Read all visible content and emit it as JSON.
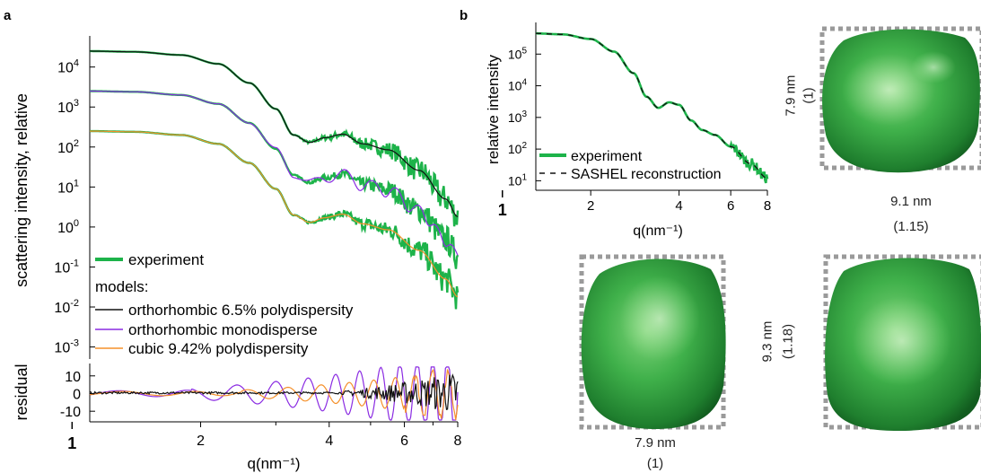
{
  "panel_labels": {
    "a": "a",
    "b": "b"
  },
  "chart_data": [
    {
      "id": "panel-a-main",
      "type": "line",
      "xlabel": "q(nm⁻¹)",
      "ylabel": "scattering intensity, relative",
      "x_scale": "log",
      "y_scale": "log",
      "xlim": [
        1.1,
        8
      ],
      "ylim": [
        0.0005,
        60000
      ],
      "x_ticks": [
        {
          "v": 2,
          "t": "2"
        },
        {
          "v": 4,
          "t": "4"
        },
        {
          "v": 6,
          "t": "6"
        },
        {
          "v": 8,
          "t": "8"
        }
      ],
      "x_tick_major": {
        "v": 1,
        "t": "1"
      },
      "y_ticks": [
        {
          "v": 10000,
          "base": "10",
          "exp": "4"
        },
        {
          "v": 1000,
          "base": "10",
          "exp": "3"
        },
        {
          "v": 100,
          "base": "10",
          "exp": "2"
        },
        {
          "v": 10,
          "base": "10",
          "exp": "1"
        },
        {
          "v": 1,
          "base": "10",
          "exp": "0"
        },
        {
          "v": 0.1,
          "base": "10",
          "exp": "-1"
        },
        {
          "v": 0.01,
          "base": "10",
          "exp": "-2"
        },
        {
          "v": 0.001,
          "base": "10",
          "exp": "-3"
        }
      ],
      "legend": {
        "experiment": "experiment",
        "models_title": "models:",
        "position": "bottom-left"
      },
      "series": [
        {
          "name": "experiment",
          "role": "experiment",
          "color": "#1db34a",
          "offset": 100
        },
        {
          "name": "orthorhombic 6.5% polydispersity",
          "role": "model",
          "color": "#111111",
          "offset": 100
        },
        {
          "name": "experiment",
          "role": "experiment",
          "color": "#1db34a",
          "offset": 10
        },
        {
          "name": "orthorhombic monodisperse",
          "role": "model",
          "color": "#8a2be2",
          "offset": 10
        },
        {
          "name": "experiment",
          "role": "experiment",
          "color": "#1db34a",
          "offset": 1
        },
        {
          "name": "cubic 9.42% polydispersity",
          "role": "model",
          "color": "#f5902a",
          "offset": 1
        }
      ],
      "curve_keypoints": {
        "q": [
          1.1,
          1.4,
          1.8,
          2.2,
          2.6,
          3.0,
          3.3,
          3.6,
          3.9,
          4.3,
          4.8,
          5.5,
          6.5,
          7.5,
          8.0
        ],
        "intensity_top": [
          25000,
          24000,
          20000,
          12000,
          4000,
          900,
          200,
          130,
          170,
          210,
          120,
          85,
          26,
          5,
          1.8
        ]
      }
    },
    {
      "id": "panel-a-residual",
      "type": "line",
      "ylabel": "residual",
      "x_scale": "log",
      "xlim": [
        1.1,
        8
      ],
      "ylim": [
        -16,
        17
      ],
      "y_ticks": [
        {
          "v": 10,
          "t": "10"
        },
        {
          "v": 0,
          "t": "0"
        },
        {
          "v": -10,
          "t": "-10"
        }
      ],
      "series": [
        {
          "name": "orthorhombic 6.5% polydispersity",
          "color": "#111111"
        },
        {
          "name": "orthorhombic monodisperse",
          "color": "#8a2be2"
        },
        {
          "name": "cubic 9.42% polydispersity",
          "color": "#f5902a"
        }
      ]
    },
    {
      "id": "panel-b",
      "type": "line",
      "xlabel": "q(nm⁻¹)",
      "ylabel": "relative intensity",
      "x_scale": "log",
      "y_scale": "log",
      "xlim": [
        1.3,
        8
      ],
      "ylim": [
        5,
        1000000
      ],
      "x_ticks": [
        {
          "v": 2,
          "t": "2"
        },
        {
          "v": 4,
          "t": "4"
        },
        {
          "v": 6,
          "t": "6"
        },
        {
          "v": 8,
          "t": "8"
        }
      ],
      "x_tick_major": {
        "v": 1,
        "t": "1"
      },
      "y_ticks": [
        {
          "v": 100000,
          "base": "10",
          "exp": "5"
        },
        {
          "v": 10000,
          "base": "10",
          "exp": "4"
        },
        {
          "v": 1000,
          "base": "10",
          "exp": "3"
        },
        {
          "v": 100,
          "base": "10",
          "exp": "2"
        },
        {
          "v": 10,
          "base": "10",
          "exp": "1"
        }
      ],
      "legend": {
        "position": "bottom-right"
      },
      "series": [
        {
          "name": "experiment",
          "color": "#1db34a",
          "style": "solid"
        },
        {
          "name": "SASHEL reconstruction",
          "color": "#111111",
          "style": "dashed"
        }
      ]
    }
  ],
  "reconstructions": {
    "top_right": {
      "width_label": "9.1 nm",
      "width_ratio": "(1.15)",
      "height_label": "7.9 nm",
      "height_ratio": "(1)"
    },
    "bottom_left": {
      "width_label": "7.9 nm",
      "width_ratio": "(1)"
    },
    "bottom_right": {
      "height_label": "9.3 nm",
      "height_ratio": "(1.18)"
    },
    "color": "#2ea43c",
    "frame_color": "#9a9a9a"
  }
}
